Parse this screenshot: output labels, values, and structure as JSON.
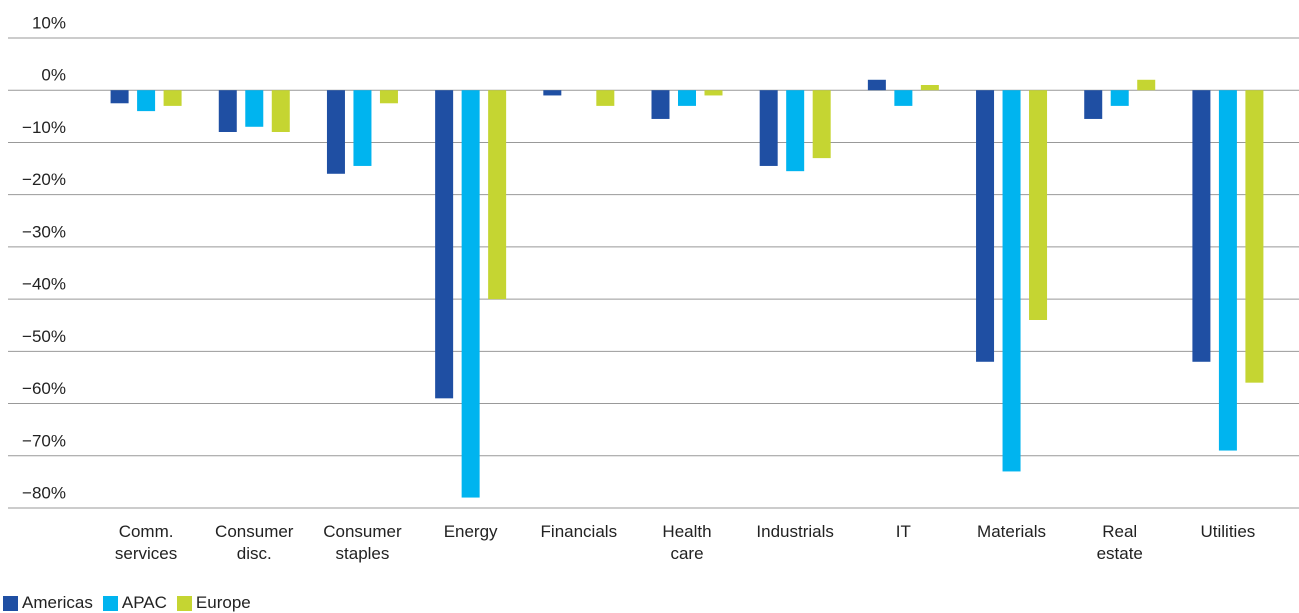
{
  "chart_data": {
    "type": "bar",
    "categories": [
      "Comm. services",
      "Consumer disc.",
      "Consumer staples",
      "Energy",
      "Financials",
      "Health care",
      "Industrials",
      "IT",
      "Materials",
      "Real estate",
      "Utilities"
    ],
    "series": [
      {
        "name": "Americas",
        "color": "#1f4fa3",
        "values": [
          -2.5,
          -8,
          -16,
          -59,
          -1,
          -5.5,
          -14.5,
          2,
          -52,
          -5.5,
          -52
        ]
      },
      {
        "name": "APAC",
        "color": "#00b4ef",
        "values": [
          -4,
          -7,
          -14.5,
          -78,
          0,
          -3,
          -15.5,
          -3,
          -73,
          -3,
          -69
        ]
      },
      {
        "name": "Europe",
        "color": "#c5d532",
        "values": [
          -3,
          -8,
          -2.5,
          -40,
          -3,
          -1,
          -13,
          1,
          -44,
          2,
          -56
        ]
      }
    ],
    "ylim": [
      -80,
      10
    ],
    "yticks": [
      {
        "value": -80,
        "label": "−80%"
      },
      {
        "value": -70,
        "label": "−70%"
      },
      {
        "value": -60,
        "label": "−60%"
      },
      {
        "value": -50,
        "label": "−50%"
      },
      {
        "value": -40,
        "label": "−40%"
      },
      {
        "value": -30,
        "label": "−30%"
      },
      {
        "value": -20,
        "label": "−20%"
      },
      {
        "value": -10,
        "label": "−10%"
      },
      {
        "value": 0,
        "label": "0%"
      },
      {
        "value": 10,
        "label": "10%"
      }
    ],
    "grid": true,
    "legend": "bottom-left"
  }
}
